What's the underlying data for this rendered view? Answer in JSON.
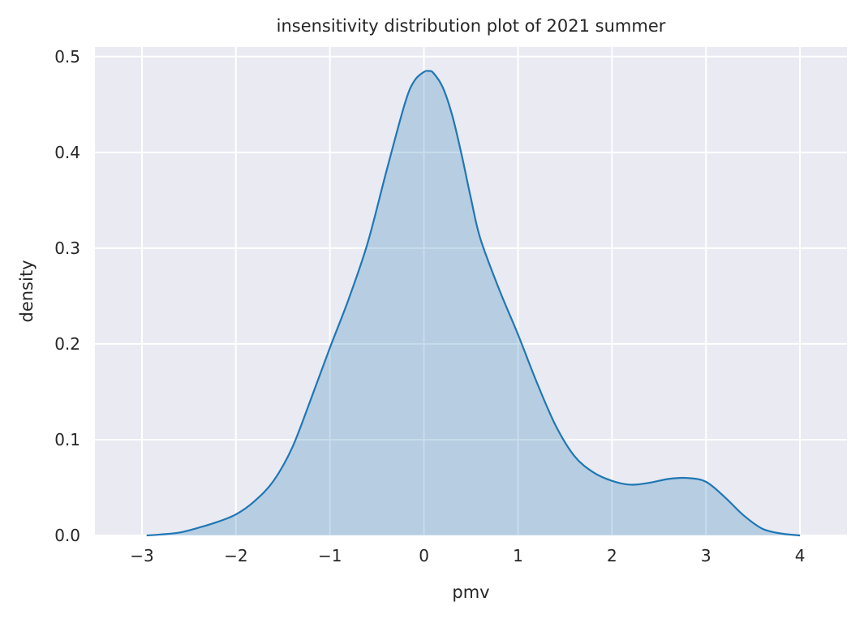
{
  "chart_data": {
    "type": "area",
    "title": "insensitivity distribution plot of 2021 summer",
    "xlabel": "pmv",
    "ylabel": "density",
    "xlim": [
      -3.5,
      4.5
    ],
    "ylim": [
      0,
      0.51
    ],
    "x_ticks": [
      -3,
      -2,
      -1,
      0,
      1,
      2,
      3,
      4
    ],
    "x_tick_labels": [
      "−3",
      "−2",
      "−1",
      "0",
      "1",
      "2",
      "3",
      "4"
    ],
    "y_ticks": [
      0.0,
      0.1,
      0.2,
      0.3,
      0.4,
      0.5
    ],
    "y_tick_labels": [
      "0.0",
      "0.1",
      "0.2",
      "0.3",
      "0.4",
      "0.5"
    ],
    "grid": true,
    "colors": {
      "background": "#eaeaf2",
      "grid": "#ffffff",
      "line": "#1f77b4",
      "fill": "#1f77b4"
    },
    "series": [
      {
        "x": [
          -2.95,
          -2.8,
          -2.6,
          -2.4,
          -2.2,
          -2.0,
          -1.8,
          -1.6,
          -1.4,
          -1.2,
          -1.0,
          -0.8,
          -0.6,
          -0.4,
          -0.2,
          -0.1,
          0.0,
          0.05,
          0.1,
          0.2,
          0.3,
          0.4,
          0.5,
          0.6,
          0.8,
          1.0,
          1.2,
          1.4,
          1.6,
          1.8,
          2.0,
          2.2,
          2.4,
          2.6,
          2.8,
          3.0,
          3.2,
          3.4,
          3.6,
          3.8,
          4.0
        ],
        "y": [
          0.0,
          0.001,
          0.003,
          0.008,
          0.014,
          0.022,
          0.036,
          0.057,
          0.092,
          0.143,
          0.196,
          0.247,
          0.305,
          0.38,
          0.452,
          0.475,
          0.484,
          0.485,
          0.483,
          0.468,
          0.439,
          0.398,
          0.352,
          0.31,
          0.257,
          0.21,
          0.16,
          0.115,
          0.083,
          0.066,
          0.057,
          0.053,
          0.055,
          0.059,
          0.06,
          0.056,
          0.04,
          0.021,
          0.007,
          0.002,
          0.0
        ]
      }
    ]
  }
}
